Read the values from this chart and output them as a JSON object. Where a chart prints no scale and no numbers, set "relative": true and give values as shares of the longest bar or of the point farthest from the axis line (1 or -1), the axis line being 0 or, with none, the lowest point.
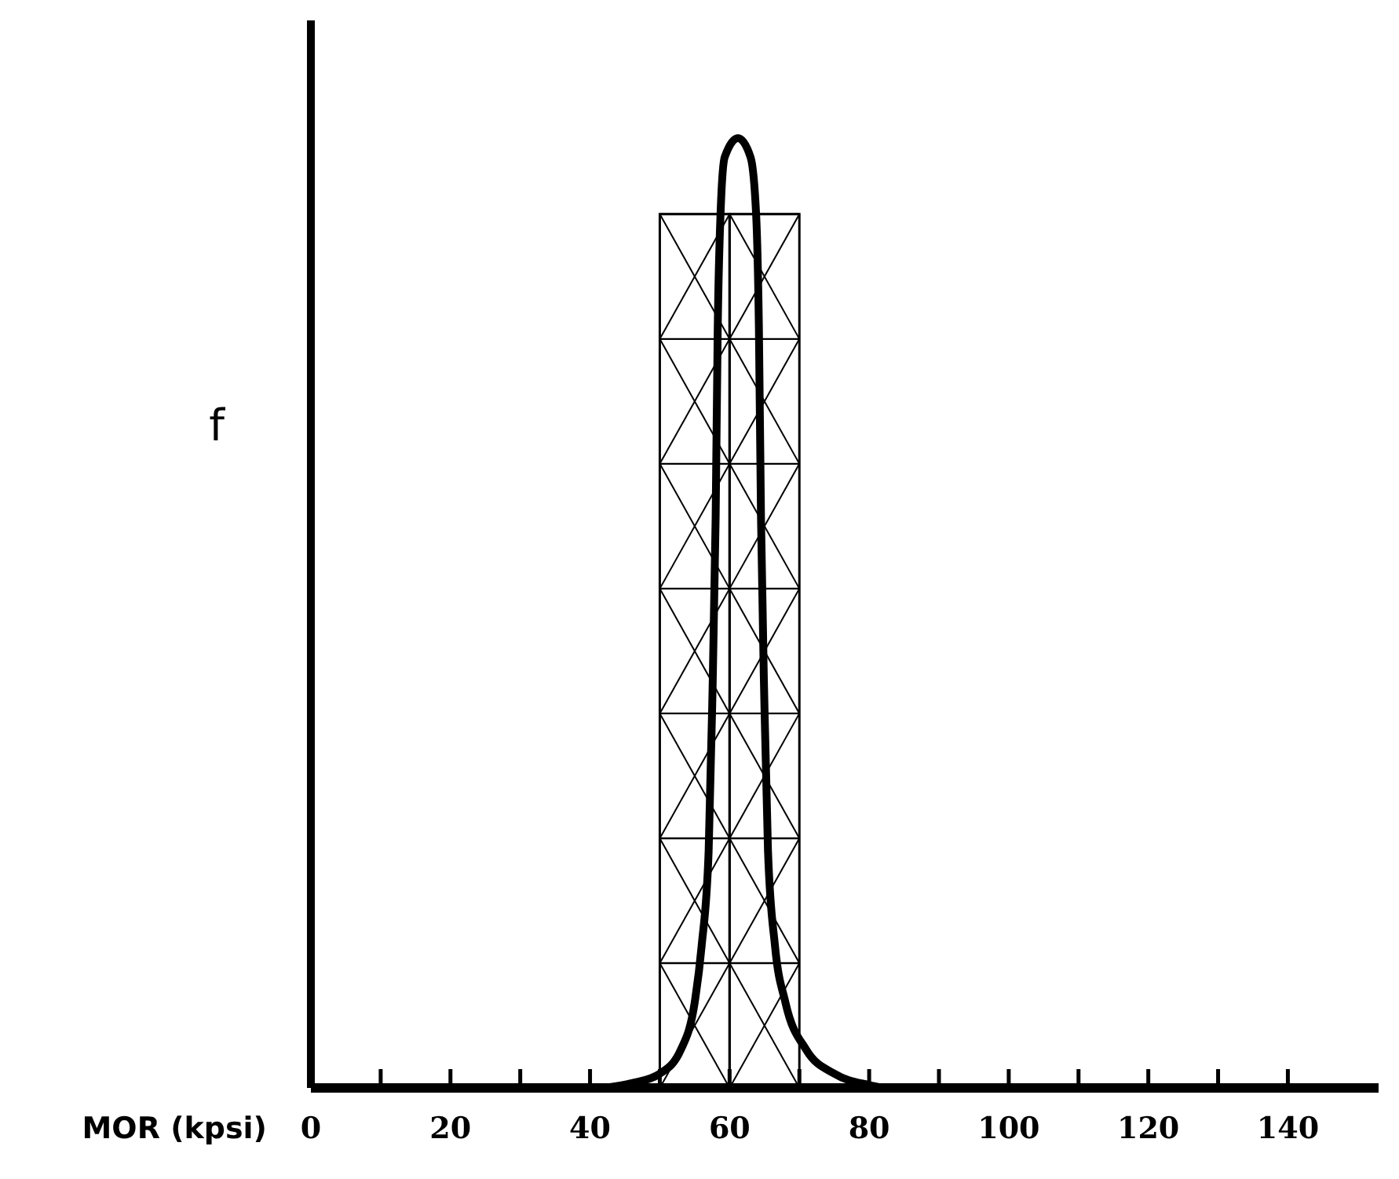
{
  "chart_data": {
    "type": "histogram",
    "relative": true,
    "xlabel": "MOR (kpsi)",
    "ylabel": "f",
    "bins": [
      50,
      60,
      70
    ],
    "values": [
      0.92,
      0.92
    ],
    "color": "#000000",
    "xlim": [
      0,
      153
    ],
    "xticks": [
      0,
      {
        "value": 10,
        "label": null
      },
      20,
      {
        "value": 30,
        "label": null
      },
      40,
      {
        "value": 50,
        "label": null
      },
      60,
      {
        "value": 70,
        "label": null
      },
      80,
      {
        "value": 90,
        "label": null
      },
      100,
      {
        "value": 110,
        "label": null
      },
      120,
      {
        "value": 130,
        "label": null
      },
      140
    ],
    "series": [
      {
        "type": "line",
        "color": "#000000",
        "x": [
          42,
          46,
          50,
          53,
          55,
          56,
          57,
          57.5,
          58,
          58.3,
          58.7,
          59.3,
          61.2,
          63,
          63.8,
          64.2,
          64.5,
          65,
          65.5,
          66.5,
          68,
          71,
          75,
          80,
          82
        ],
        "values": [
          0,
          0.005,
          0.015,
          0.04,
          0.09,
          0.15,
          0.25,
          0.4,
          0.6,
          0.8,
          0.92,
          0.98,
          1,
          0.98,
          0.92,
          0.8,
          0.6,
          0.4,
          0.25,
          0.15,
          0.09,
          0.04,
          0.015,
          0.003,
          0
        ]
      }
    ],
    "grid": false,
    "line_style": "solid",
    "marker": "none"
  }
}
